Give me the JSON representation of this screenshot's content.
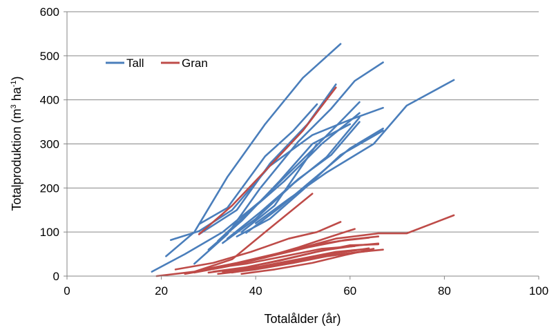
{
  "chart_data": {
    "type": "line",
    "xlabel": "Totalålder (år)",
    "ylabel_main": "Totalproduktion (m",
    "ylabel_sup1": "3",
    "ylabel_mid": " ha",
    "ylabel_sup2": "-1",
    "ylabel_end": ")",
    "xlim": [
      0,
      100
    ],
    "ylim": [
      0,
      600
    ],
    "xticks": [
      "0",
      "20",
      "40",
      "60",
      "80",
      "100"
    ],
    "yticks": [
      "0",
      "100",
      "200",
      "300",
      "400",
      "500",
      "600"
    ],
    "grid": "horizontal",
    "legend_position": "upper-left",
    "legend": [
      {
        "name": "Tall",
        "color": "#4a7ebb"
      },
      {
        "name": "Gran",
        "color": "#be4b48"
      }
    ],
    "series": [
      {
        "name": "Tall",
        "color": "#4a7ebb",
        "lines": [
          [
            [
              18,
              10
            ],
            [
              25,
              50
            ],
            [
              33,
              100
            ],
            [
              41,
              170
            ],
            [
              50,
              265
            ],
            [
              57,
              340
            ],
            [
              62,
              395
            ]
          ],
          [
            [
              21,
              45
            ],
            [
              27,
              100
            ],
            [
              34,
              225
            ],
            [
              42,
              345
            ],
            [
              50,
              450
            ],
            [
              58,
              527
            ]
          ],
          [
            [
              22,
              82
            ],
            [
              28,
              102
            ],
            [
              35,
              150
            ],
            [
              43,
              250
            ],
            [
              52,
              320
            ],
            [
              60,
              355
            ],
            [
              67,
              382
            ]
          ],
          [
            [
              27,
              28
            ],
            [
              34,
              95
            ],
            [
              41,
              200
            ],
            [
              49,
              305
            ],
            [
              56,
              380
            ],
            [
              61,
              443
            ],
            [
              67,
              485
            ]
          ],
          [
            [
              28,
              95
            ],
            [
              36,
              150
            ],
            [
              43,
              255
            ],
            [
              51,
              345
            ],
            [
              57,
              435
            ]
          ],
          [
            [
              28,
              118
            ],
            [
              34,
              155
            ],
            [
              42,
              272
            ],
            [
              48,
              330
            ],
            [
              53,
              390
            ]
          ],
          [
            [
              30,
              60
            ],
            [
              37,
              125
            ],
            [
              45,
              215
            ],
            [
              52,
              300
            ],
            [
              60,
              345
            ]
          ],
          [
            [
              32,
              80
            ],
            [
              39,
              150
            ],
            [
              46,
              215
            ],
            [
              54,
              300
            ],
            [
              62,
              370
            ]
          ],
          [
            [
              33,
              75
            ],
            [
              40,
              130
            ],
            [
              48,
              210
            ],
            [
              55,
              270
            ],
            [
              62,
              360
            ]
          ],
          [
            [
              34,
              85
            ],
            [
              41,
              145
            ],
            [
              49,
              220
            ],
            [
              56,
              275
            ],
            [
              62,
              350
            ]
          ],
          [
            [
              36,
              90
            ],
            [
              43,
              130
            ],
            [
              51,
              205
            ],
            [
              58,
              275
            ],
            [
              67,
              330
            ]
          ],
          [
            [
              38,
              98
            ],
            [
              45,
              155
            ],
            [
              52,
              218
            ],
            [
              60,
              290
            ],
            [
              67,
              335
            ]
          ],
          [
            [
              37,
              100
            ],
            [
              44,
              160
            ],
            [
              53,
              300
            ]
          ],
          [
            [
              40,
              120
            ],
            [
              47,
              175
            ],
            [
              55,
              235
            ],
            [
              65,
              300
            ],
            [
              72,
              387
            ],
            [
              82,
              445
            ]
          ]
        ]
      },
      {
        "name": "Gran",
        "color": "#be4b48",
        "lines": [
          [
            [
              28,
              95
            ],
            [
              35,
              160
            ],
            [
              43,
              250
            ],
            [
              50,
              330
            ],
            [
              57,
              428
            ]
          ],
          [
            [
              19,
              0
            ],
            [
              27,
              10
            ],
            [
              35,
              38
            ],
            [
              42,
              100
            ],
            [
              52,
              187
            ]
          ],
          [
            [
              23,
              15
            ],
            [
              31,
              30
            ],
            [
              39,
              55
            ],
            [
              47,
              85
            ],
            [
              53,
              100
            ],
            [
              58,
              123
            ]
          ],
          [
            [
              25,
              5
            ],
            [
              33,
              20
            ],
            [
              41,
              40
            ],
            [
              49,
              65
            ],
            [
              56,
              90
            ],
            [
              61,
              107
            ]
          ],
          [
            [
              27,
              8
            ],
            [
              34,
              22
            ],
            [
              42,
              42
            ],
            [
              50,
              65
            ],
            [
              57,
              85
            ],
            [
              66,
              97
            ],
            [
              72,
              97
            ],
            [
              82,
              138
            ]
          ],
          [
            [
              28,
              12
            ],
            [
              35,
              25
            ],
            [
              43,
              45
            ],
            [
              51,
              65
            ],
            [
              59,
              82
            ],
            [
              66,
              90
            ]
          ],
          [
            [
              29,
              15
            ],
            [
              36,
              30
            ],
            [
              44,
              50
            ],
            [
              52,
              70
            ],
            [
              58,
              80
            ],
            [
              64,
              87
            ]
          ],
          [
            [
              30,
              8
            ],
            [
              37,
              18
            ],
            [
              45,
              35
            ],
            [
              53,
              55
            ],
            [
              60,
              70
            ],
            [
              66,
              72
            ]
          ],
          [
            [
              31,
              10
            ],
            [
              38,
              20
            ],
            [
              46,
              38
            ],
            [
              54,
              58
            ],
            [
              62,
              70
            ],
            [
              66,
              74
            ]
          ],
          [
            [
              31,
              18
            ],
            [
              38,
              28
            ],
            [
              46,
              45
            ],
            [
              54,
              62
            ],
            [
              61,
              68
            ]
          ],
          [
            [
              32,
              5
            ],
            [
              40,
              15
            ],
            [
              48,
              30
            ],
            [
              56,
              50
            ],
            [
              64,
              63
            ]
          ],
          [
            [
              33,
              10
            ],
            [
              40,
              18
            ],
            [
              48,
              30
            ],
            [
              55,
              45
            ],
            [
              62,
              55
            ],
            [
              67,
              60
            ]
          ],
          [
            [
              34,
              12
            ],
            [
              41,
              22
            ],
            [
              49,
              38
            ],
            [
              57,
              55
            ],
            [
              64,
              62
            ]
          ],
          [
            [
              35,
              8
            ],
            [
              42,
              20
            ],
            [
              50,
              38
            ],
            [
              57,
              48
            ],
            [
              64,
              57
            ]
          ],
          [
            [
              37,
              5
            ],
            [
              44,
              15
            ],
            [
              52,
              30
            ],
            [
              59,
              48
            ],
            [
              65,
              62
            ]
          ]
        ]
      }
    ]
  }
}
